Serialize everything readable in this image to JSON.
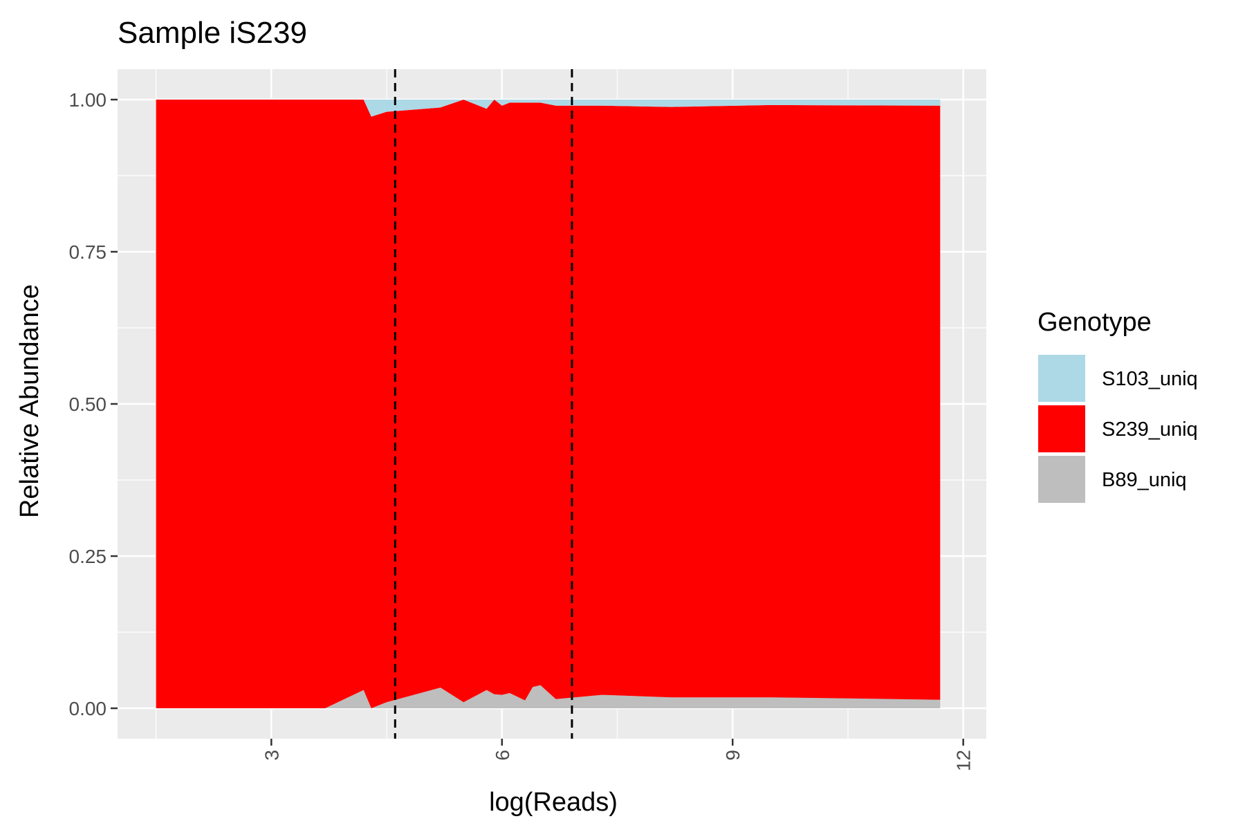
{
  "chart_data": {
    "type": "area",
    "stacking": "fill",
    "title": "Sample iS239",
    "xlabel": "log(Reads)",
    "ylabel": "Relative Abundance",
    "xlim": [
      1.0,
      12.3
    ],
    "ylim": [
      -0.05,
      1.05
    ],
    "x_ticks": [
      3,
      6,
      9,
      12
    ],
    "x_tick_labels": [
      "3",
      "6",
      "9",
      "12"
    ],
    "y_ticks": [
      0,
      0.25,
      0.5,
      0.75,
      1.0
    ],
    "y_tick_labels": [
      "0.00",
      "0.25",
      "0.50",
      "0.75",
      "1.00"
    ],
    "grid": true,
    "background": "#ebebeb",
    "vlines": [
      4.61,
      6.91
    ],
    "vline_style": "dashed",
    "legend": {
      "title": "Genotype",
      "position": "right",
      "entries": [
        "S103_uniq",
        "S239_uniq",
        "B89_uniq"
      ]
    },
    "x": [
      1.5,
      3.7,
      4.2,
      4.3,
      4.5,
      5.2,
      5.5,
      5.8,
      5.9,
      6.0,
      6.1,
      6.3,
      6.4,
      6.5,
      6.7,
      7.3,
      8.2,
      9.5,
      11.7
    ],
    "series": [
      {
        "name": "S103_uniq",
        "color": "#add8e6",
        "values": [
          0.0,
          0.0,
          0.0,
          0.028,
          0.02,
          0.013,
          0.0,
          0.015,
          0.0,
          0.01,
          0.005,
          0.005,
          0.005,
          0.005,
          0.01,
          0.01,
          0.012,
          0.009,
          0.01
        ]
      },
      {
        "name": "S239_uniq",
        "color": "#ff0000",
        "values": [
          1.0,
          1.0,
          0.97,
          0.972,
          0.97,
          0.953,
          0.99,
          0.955,
          0.977,
          0.968,
          0.97,
          0.982,
          0.96,
          0.957,
          0.975,
          0.968,
          0.97,
          0.973,
          0.976
        ]
      },
      {
        "name": "B89_uniq",
        "color": "#bebebe",
        "values": [
          0.0,
          0.0,
          0.03,
          0.0,
          0.01,
          0.034,
          0.01,
          0.03,
          0.023,
          0.022,
          0.025,
          0.013,
          0.035,
          0.038,
          0.015,
          0.022,
          0.018,
          0.018,
          0.014
        ]
      }
    ]
  }
}
